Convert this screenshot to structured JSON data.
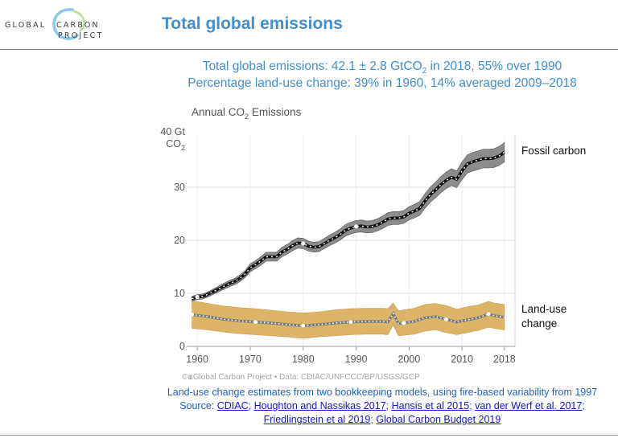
{
  "header": {
    "logo_line1_left": "GLOBAL",
    "logo_line1_right": "CARBON",
    "logo_line2": "PROJECT",
    "title": "Total global emissions"
  },
  "headline": {
    "line1_a": "Total global emissions: 42.1 ± 2.8 GtCO",
    "line1_sub": "2",
    "line1_b": " in 2018, 55% over 1990",
    "line2": "Percentage land-use change: 39% in 1960, 14% averaged 2009–2018"
  },
  "chart_data": {
    "type": "area",
    "title_a": "Annual CO",
    "title_sub": "2",
    "title_b": " Emissions",
    "ylabel_top": "40 Gt",
    "ylabel_bottom": "CO2",
    "xlim": [
      1958,
      2020
    ],
    "ylim": [
      0,
      40
    ],
    "xticks": [
      1960,
      1970,
      1980,
      1990,
      2000,
      2010,
      2018
    ],
    "yticks": [
      0,
      10,
      20,
      30
    ],
    "grid": true,
    "credit": "©⧆Global Carbon Project  •  Data: CDIAC/UNFCCC/BP/USGS/GCP",
    "colors": {
      "fossil_band": "#8c8c8c",
      "landuse_band": "#dcb468",
      "line": "#111111",
      "grid": "#d8d8d8"
    },
    "series": [
      {
        "name": "Fossil carbon",
        "label": "Fossil carbon",
        "uncertainty": 0.05,
        "x": [
          1959,
          1960,
          1961,
          1962,
          1963,
          1964,
          1965,
          1966,
          1967,
          1968,
          1969,
          1970,
          1971,
          1972,
          1973,
          1974,
          1975,
          1976,
          1977,
          1978,
          1979,
          1980,
          1981,
          1982,
          1983,
          1984,
          1985,
          1986,
          1987,
          1988,
          1989,
          1990,
          1991,
          1992,
          1993,
          1994,
          1995,
          1996,
          1997,
          1998,
          1999,
          2000,
          2001,
          2002,
          2003,
          2004,
          2005,
          2006,
          2007,
          2008,
          2009,
          2010,
          2011,
          2012,
          2013,
          2014,
          2015,
          2016,
          2017,
          2018
        ],
        "y": [
          9.0,
          9.3,
          9.4,
          9.8,
          10.3,
          10.8,
          11.3,
          11.8,
          12.2,
          12.8,
          13.6,
          14.8,
          15.4,
          16.1,
          16.9,
          16.9,
          16.9,
          17.8,
          18.3,
          19.0,
          19.5,
          19.4,
          18.9,
          18.7,
          18.8,
          19.4,
          20.0,
          20.5,
          21.1,
          21.9,
          22.3,
          22.6,
          22.7,
          22.5,
          22.6,
          22.9,
          23.4,
          24.0,
          24.2,
          24.2,
          24.4,
          25.1,
          25.5,
          26.0,
          27.4,
          28.6,
          29.5,
          30.5,
          31.3,
          31.9,
          31.5,
          33.1,
          34.4,
          34.8,
          35.1,
          35.4,
          35.4,
          35.5,
          35.9,
          36.6
        ]
      },
      {
        "name": "Land-use change",
        "label_line1": "Land-use",
        "label_line2": "change",
        "x": [
          1959,
          1962,
          1965,
          1968,
          1971,
          1974,
          1977,
          1980,
          1983,
          1986,
          1989,
          1992,
          1995,
          1996,
          1997,
          1998,
          1999,
          2001,
          2003,
          2005,
          2007,
          2009,
          2011,
          2013,
          2015,
          2016,
          2018
        ],
        "y": [
          6.0,
          5.6,
          5.1,
          4.8,
          4.6,
          4.4,
          4.1,
          3.9,
          4.1,
          4.4,
          4.6,
          4.7,
          4.7,
          4.6,
          6.2,
          4.3,
          4.4,
          4.7,
          5.4,
          5.6,
          5.1,
          4.6,
          5.0,
          5.4,
          6.1,
          5.8,
          5.5
        ],
        "upper": [
          8.6,
          8.1,
          7.6,
          7.3,
          7.1,
          6.8,
          6.5,
          6.3,
          6.5,
          6.9,
          7.1,
          7.2,
          7.2,
          7.1,
          8.2,
          6.7,
          6.9,
          7.2,
          7.9,
          8.1,
          7.7,
          7.0,
          7.5,
          7.8,
          8.5,
          8.2,
          7.9
        ],
        "lower": [
          3.4,
          3.1,
          2.7,
          2.4,
          2.2,
          2.0,
          1.8,
          1.5,
          1.8,
          2.0,
          2.2,
          2.3,
          2.3,
          2.2,
          4.0,
          2.0,
          2.1,
          2.3,
          2.9,
          3.1,
          2.6,
          2.2,
          2.6,
          3.0,
          3.6,
          3.4,
          3.1
        ]
      }
    ]
  },
  "footer": {
    "line1": "Land-use change estimates from two bookkeeping models, using fire-based variability from 1997",
    "source_label": "Source: ",
    "links": [
      "CDIAC",
      "Houghton and Nassikas 2017",
      "Hansis et al 2015",
      "van der Werf et al. 2017",
      "Friedlingstein et al 2019",
      "Global Carbon Budget 2019"
    ],
    "sep": "; "
  }
}
